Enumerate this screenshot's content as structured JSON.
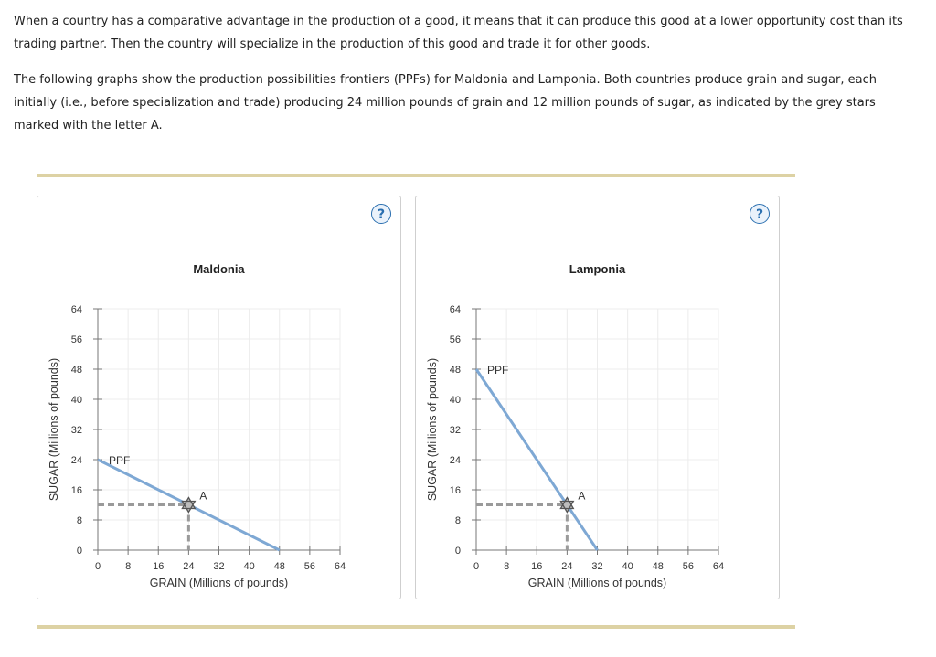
{
  "intro": {
    "paragraph1": "When a country has a comparative advantage in the production of a good, it means that it can produce this good at a lower opportunity cost than its trading partner. Then the country will specialize in the production of this good and trade it for other goods.",
    "paragraph2": "The following graphs show the production possibilities frontiers (PPFs) for Maldonia and Lamponia. Both countries produce grain and sugar, each initially (i.e., before specialization and trade) producing 24 million pounds of grain and 12 million pounds of sugar, as indicated by the grey stars marked with the letter A."
  },
  "help_icon": "?",
  "colors": {
    "ppf": "#7ea8d4",
    "dashed": "#9a9a9a",
    "star": "#555555",
    "rule": "#ddd2a4",
    "help": "#2a6fb0"
  },
  "chart_data": [
    {
      "type": "line",
      "title": "Maldonia",
      "xlabel": "GRAIN (Millions of pounds)",
      "ylabel": "SUGAR (Millions of pounds)",
      "xlim": [
        0,
        64
      ],
      "ylim": [
        0,
        64
      ],
      "xticks": [
        "0",
        "8",
        "16",
        "24",
        "32",
        "40",
        "48",
        "56",
        "64"
      ],
      "yticks": [
        "0",
        "8",
        "16",
        "24",
        "32",
        "40",
        "48",
        "56",
        "64"
      ],
      "grid": true,
      "series": [
        {
          "name": "PPF",
          "x": [
            0,
            48
          ],
          "y": [
            24,
            0
          ]
        }
      ],
      "points": [
        {
          "label": "A",
          "x": 24,
          "y": 12
        }
      ]
    },
    {
      "type": "line",
      "title": "Lamponia",
      "xlabel": "GRAIN (Millions of pounds)",
      "ylabel": "SUGAR (Millions of pounds)",
      "xlim": [
        0,
        64
      ],
      "ylim": [
        0,
        64
      ],
      "xticks": [
        "0",
        "8",
        "16",
        "24",
        "32",
        "40",
        "48",
        "56",
        "64"
      ],
      "yticks": [
        "0",
        "8",
        "16",
        "24",
        "32",
        "40",
        "48",
        "56",
        "64"
      ],
      "grid": true,
      "series": [
        {
          "name": "PPF",
          "x": [
            0,
            32
          ],
          "y": [
            48,
            0
          ]
        }
      ],
      "points": [
        {
          "label": "A",
          "x": 24,
          "y": 12
        }
      ]
    }
  ]
}
